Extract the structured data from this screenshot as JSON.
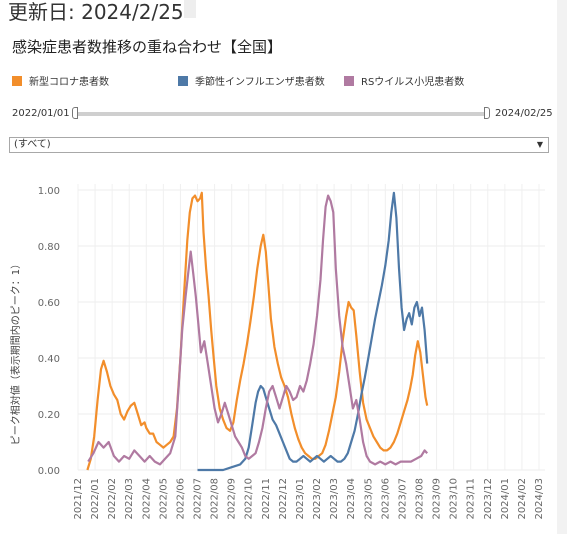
{
  "header": {
    "updated_label": "更新日: 2024/2/25",
    "title": "感染症患者数推移の重ね合わせ【全国】"
  },
  "legend": [
    {
      "label": "新型コロナ患者数",
      "color": "#f28e2b"
    },
    {
      "label": "季節性インフルエンザ患者数",
      "color": "#4e79a7"
    },
    {
      "label": "RSウイルス小児患者数",
      "color": "#b07aa1"
    }
  ],
  "date_filter": {
    "start": "2022/01/01",
    "end": "2024/02/25"
  },
  "dropdown": {
    "selected": "(すべて)"
  },
  "icons": {
    "dropdown_arrow": "caret-down-icon"
  },
  "chart_data": {
    "type": "line",
    "ylabel": "ピーク相対値（表示期間内のピーク：1）",
    "ylim": [
      0,
      1
    ],
    "yticks": [
      "0.00",
      "0.20",
      "0.40",
      "0.60",
      "0.80",
      "1.00"
    ],
    "xticks": [
      "2021/12",
      "2022/01",
      "2022/02",
      "2022/03",
      "2022/04",
      "2022/05",
      "2022/06",
      "2022/07",
      "2022/08",
      "2022/09",
      "2022/10",
      "2022/11",
      "2022/12",
      "2023/01",
      "2023/02",
      "2023/03",
      "2023/04",
      "2023/05",
      "2023/06",
      "2023/07",
      "2023/08",
      "2023/09",
      "2023/10",
      "2023/11",
      "2023/12",
      "2024/01",
      "2024/02",
      "2024/03"
    ],
    "grid": true,
    "series": [
      {
        "name": "新型コロナ患者数",
        "color": "#f28e2b",
        "points": [
          [
            0.55,
            0.0
          ],
          [
            0.75,
            0.04
          ],
          [
            0.95,
            0.12
          ],
          [
            1.15,
            0.25
          ],
          [
            1.35,
            0.36
          ],
          [
            1.5,
            0.39
          ],
          [
            1.7,
            0.35
          ],
          [
            1.9,
            0.3
          ],
          [
            2.1,
            0.27
          ],
          [
            2.3,
            0.25
          ],
          [
            2.5,
            0.2
          ],
          [
            2.7,
            0.18
          ],
          [
            2.9,
            0.21
          ],
          [
            3.1,
            0.23
          ],
          [
            3.3,
            0.24
          ],
          [
            3.5,
            0.2
          ],
          [
            3.7,
            0.16
          ],
          [
            3.9,
            0.17
          ],
          [
            4.0,
            0.15
          ],
          [
            4.2,
            0.13
          ],
          [
            4.4,
            0.13
          ],
          [
            4.6,
            0.1
          ],
          [
            4.8,
            0.09
          ],
          [
            5.0,
            0.08
          ],
          [
            5.2,
            0.09
          ],
          [
            5.4,
            0.1
          ],
          [
            5.6,
            0.12
          ],
          [
            5.8,
            0.22
          ],
          [
            6.0,
            0.4
          ],
          [
            6.2,
            0.62
          ],
          [
            6.4,
            0.82
          ],
          [
            6.55,
            0.92
          ],
          [
            6.7,
            0.97
          ],
          [
            6.85,
            0.98
          ],
          [
            7.0,
            0.96
          ],
          [
            7.15,
            0.97
          ],
          [
            7.25,
            0.99
          ],
          [
            7.35,
            0.85
          ],
          [
            7.5,
            0.72
          ],
          [
            7.65,
            0.62
          ],
          [
            7.8,
            0.5
          ],
          [
            7.95,
            0.4
          ],
          [
            8.1,
            0.3
          ],
          [
            8.3,
            0.22
          ],
          [
            8.5,
            0.18
          ],
          [
            8.7,
            0.15
          ],
          [
            8.9,
            0.14
          ],
          [
            9.1,
            0.17
          ],
          [
            9.3,
            0.25
          ],
          [
            9.5,
            0.32
          ],
          [
            9.7,
            0.38
          ],
          [
            9.9,
            0.45
          ],
          [
            10.1,
            0.53
          ],
          [
            10.3,
            0.62
          ],
          [
            10.5,
            0.72
          ],
          [
            10.7,
            0.8
          ],
          [
            10.85,
            0.84
          ],
          [
            11.0,
            0.78
          ],
          [
            11.15,
            0.66
          ],
          [
            11.3,
            0.54
          ],
          [
            11.5,
            0.44
          ],
          [
            11.7,
            0.38
          ],
          [
            11.9,
            0.33
          ],
          [
            12.1,
            0.3
          ],
          [
            12.3,
            0.26
          ],
          [
            12.5,
            0.2
          ],
          [
            12.7,
            0.15
          ],
          [
            12.9,
            0.11
          ],
          [
            13.1,
            0.08
          ],
          [
            13.3,
            0.06
          ],
          [
            13.5,
            0.05
          ],
          [
            13.7,
            0.04
          ],
          [
            13.9,
            0.04
          ],
          [
            14.1,
            0.05
          ],
          [
            14.3,
            0.06
          ],
          [
            14.5,
            0.09
          ],
          [
            14.7,
            0.14
          ],
          [
            14.9,
            0.2
          ],
          [
            15.1,
            0.26
          ],
          [
            15.3,
            0.35
          ],
          [
            15.5,
            0.46
          ],
          [
            15.7,
            0.55
          ],
          [
            15.85,
            0.6
          ],
          [
            16.0,
            0.58
          ],
          [
            16.15,
            0.57
          ],
          [
            16.3,
            0.48
          ],
          [
            16.5,
            0.35
          ],
          [
            16.7,
            0.24
          ],
          [
            16.9,
            0.18
          ],
          [
            17.1,
            0.15
          ],
          [
            17.3,
            0.12
          ],
          [
            17.5,
            0.1
          ],
          [
            17.7,
            0.08
          ],
          [
            17.9,
            0.07
          ],
          [
            18.1,
            0.07
          ],
          [
            18.3,
            0.08
          ],
          [
            18.5,
            0.1
          ],
          [
            18.7,
            0.13
          ],
          [
            18.9,
            0.17
          ],
          [
            19.1,
            0.21
          ],
          [
            19.3,
            0.25
          ],
          [
            19.45,
            0.29
          ],
          [
            19.6,
            0.34
          ],
          [
            19.75,
            0.41
          ],
          [
            19.9,
            0.46
          ],
          [
            20.05,
            0.42
          ],
          [
            20.2,
            0.34
          ],
          [
            20.35,
            0.26
          ],
          [
            20.45,
            0.23
          ]
        ]
      },
      {
        "name": "季節性インフルエンザ患者数",
        "color": "#4e79a7",
        "points": [
          [
            7.0,
            0.0
          ],
          [
            7.5,
            0.0
          ],
          [
            8.0,
            0.0
          ],
          [
            8.5,
            0.0
          ],
          [
            9.0,
            0.01
          ],
          [
            9.5,
            0.02
          ],
          [
            9.8,
            0.04
          ],
          [
            10.0,
            0.08
          ],
          [
            10.2,
            0.16
          ],
          [
            10.4,
            0.24
          ],
          [
            10.55,
            0.28
          ],
          [
            10.7,
            0.3
          ],
          [
            10.85,
            0.29
          ],
          [
            11.0,
            0.26
          ],
          [
            11.2,
            0.22
          ],
          [
            11.4,
            0.18
          ],
          [
            11.6,
            0.16
          ],
          [
            11.8,
            0.13
          ],
          [
            12.0,
            0.1
          ],
          [
            12.2,
            0.07
          ],
          [
            12.4,
            0.04
          ],
          [
            12.6,
            0.03
          ],
          [
            12.8,
            0.03
          ],
          [
            13.0,
            0.04
          ],
          [
            13.2,
            0.05
          ],
          [
            13.4,
            0.04
          ],
          [
            13.6,
            0.03
          ],
          [
            13.8,
            0.04
          ],
          [
            14.0,
            0.05
          ],
          [
            14.2,
            0.04
          ],
          [
            14.4,
            0.03
          ],
          [
            14.6,
            0.04
          ],
          [
            14.8,
            0.05
          ],
          [
            15.0,
            0.04
          ],
          [
            15.2,
            0.03
          ],
          [
            15.4,
            0.03
          ],
          [
            15.6,
            0.04
          ],
          [
            15.8,
            0.06
          ],
          [
            16.0,
            0.1
          ],
          [
            16.2,
            0.14
          ],
          [
            16.4,
            0.2
          ],
          [
            16.6,
            0.27
          ],
          [
            16.8,
            0.33
          ],
          [
            17.0,
            0.4
          ],
          [
            17.2,
            0.47
          ],
          [
            17.4,
            0.54
          ],
          [
            17.6,
            0.6
          ],
          [
            17.8,
            0.66
          ],
          [
            18.0,
            0.73
          ],
          [
            18.2,
            0.82
          ],
          [
            18.35,
            0.92
          ],
          [
            18.5,
            0.99
          ],
          [
            18.65,
            0.9
          ],
          [
            18.8,
            0.72
          ],
          [
            18.95,
            0.58
          ],
          [
            19.1,
            0.5
          ],
          [
            19.25,
            0.54
          ],
          [
            19.4,
            0.56
          ],
          [
            19.55,
            0.52
          ],
          [
            19.7,
            0.58
          ],
          [
            19.85,
            0.6
          ],
          [
            20.0,
            0.55
          ],
          [
            20.15,
            0.58
          ],
          [
            20.3,
            0.5
          ],
          [
            20.45,
            0.38
          ]
        ]
      },
      {
        "name": "RSウイルス小児患者数",
        "color": "#b07aa1",
        "points": [
          [
            0.6,
            0.03
          ],
          [
            0.9,
            0.06
          ],
          [
            1.2,
            0.1
          ],
          [
            1.5,
            0.08
          ],
          [
            1.8,
            0.1
          ],
          [
            2.1,
            0.05
          ],
          [
            2.4,
            0.03
          ],
          [
            2.7,
            0.05
          ],
          [
            3.0,
            0.04
          ],
          [
            3.3,
            0.07
          ],
          [
            3.6,
            0.05
          ],
          [
            3.9,
            0.03
          ],
          [
            4.2,
            0.05
          ],
          [
            4.5,
            0.03
          ],
          [
            4.8,
            0.02
          ],
          [
            5.1,
            0.04
          ],
          [
            5.4,
            0.06
          ],
          [
            5.7,
            0.12
          ],
          [
            5.9,
            0.3
          ],
          [
            6.1,
            0.5
          ],
          [
            6.3,
            0.62
          ],
          [
            6.45,
            0.7
          ],
          [
            6.6,
            0.78
          ],
          [
            6.75,
            0.7
          ],
          [
            6.9,
            0.62
          ],
          [
            7.05,
            0.52
          ],
          [
            7.2,
            0.42
          ],
          [
            7.4,
            0.46
          ],
          [
            7.6,
            0.38
          ],
          [
            7.8,
            0.3
          ],
          [
            8.0,
            0.22
          ],
          [
            8.2,
            0.17
          ],
          [
            8.4,
            0.2
          ],
          [
            8.6,
            0.24
          ],
          [
            8.8,
            0.2
          ],
          [
            9.0,
            0.16
          ],
          [
            9.2,
            0.12
          ],
          [
            9.4,
            0.1
          ],
          [
            9.6,
            0.08
          ],
          [
            9.8,
            0.05
          ],
          [
            10.0,
            0.04
          ],
          [
            10.2,
            0.05
          ],
          [
            10.4,
            0.06
          ],
          [
            10.6,
            0.1
          ],
          [
            10.8,
            0.15
          ],
          [
            11.0,
            0.22
          ],
          [
            11.2,
            0.28
          ],
          [
            11.4,
            0.3
          ],
          [
            11.6,
            0.26
          ],
          [
            11.8,
            0.22
          ],
          [
            12.0,
            0.26
          ],
          [
            12.2,
            0.3
          ],
          [
            12.4,
            0.28
          ],
          [
            12.6,
            0.25
          ],
          [
            12.8,
            0.26
          ],
          [
            13.0,
            0.3
          ],
          [
            13.2,
            0.28
          ],
          [
            13.4,
            0.32
          ],
          [
            13.6,
            0.38
          ],
          [
            13.8,
            0.45
          ],
          [
            14.0,
            0.55
          ],
          [
            14.2,
            0.68
          ],
          [
            14.35,
            0.82
          ],
          [
            14.5,
            0.94
          ],
          [
            14.65,
            0.98
          ],
          [
            14.8,
            0.96
          ],
          [
            14.95,
            0.92
          ],
          [
            15.1,
            0.72
          ],
          [
            15.3,
            0.55
          ],
          [
            15.5,
            0.44
          ],
          [
            15.7,
            0.38
          ],
          [
            15.9,
            0.3
          ],
          [
            16.1,
            0.22
          ],
          [
            16.3,
            0.25
          ],
          [
            16.5,
            0.18
          ],
          [
            16.7,
            0.1
          ],
          [
            16.9,
            0.05
          ],
          [
            17.1,
            0.03
          ],
          [
            17.4,
            0.02
          ],
          [
            17.7,
            0.03
          ],
          [
            18.0,
            0.02
          ],
          [
            18.3,
            0.03
          ],
          [
            18.6,
            0.02
          ],
          [
            18.9,
            0.03
          ],
          [
            19.2,
            0.03
          ],
          [
            19.5,
            0.03
          ],
          [
            19.8,
            0.04
          ],
          [
            20.1,
            0.05
          ],
          [
            20.3,
            0.07
          ],
          [
            20.45,
            0.06
          ]
        ]
      }
    ]
  }
}
